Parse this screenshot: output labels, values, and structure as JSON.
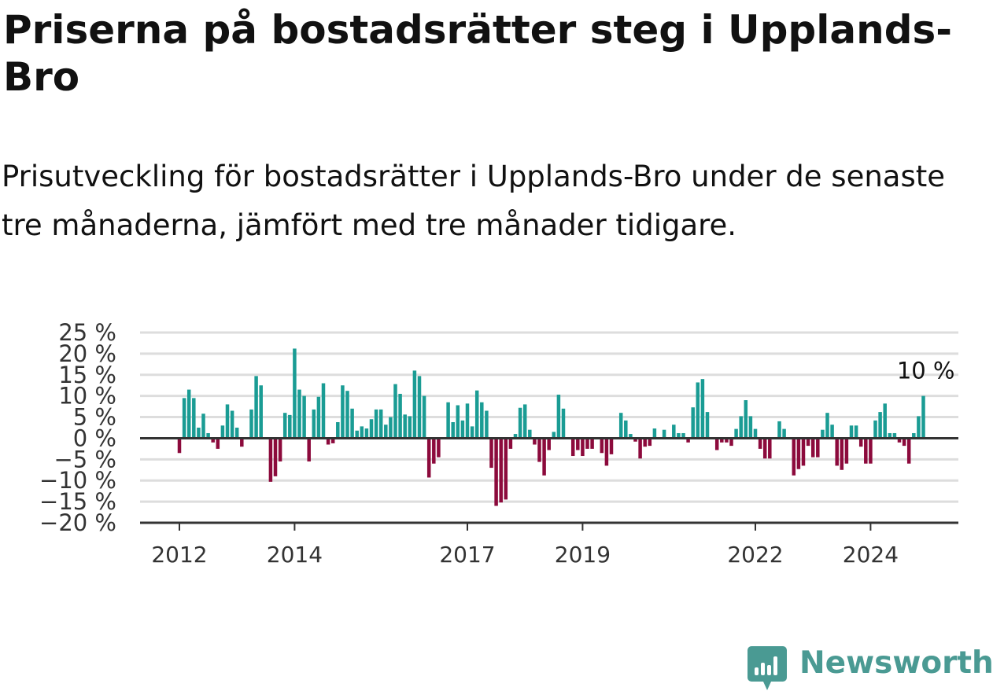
{
  "title": "Priserna på bostadsrätter steg i Upplands-Bro",
  "subtitle": "Prisutveckling för bostadsrätter i Upplands-Bro under de senaste tre månaderna, jämfört med tre månader tidigare.",
  "brand": {
    "name": "Newsworthy"
  },
  "colors": {
    "positive": "#1a9c94",
    "negative": "#8c0a3c",
    "grid": "#dddddd",
    "axis": "#333333"
  },
  "chart_data": {
    "type": "bar",
    "title": "",
    "xlabel": "",
    "ylabel": "",
    "x_start": "2012-01",
    "x_end": "2024-10",
    "ylim": [
      -20,
      25
    ],
    "yticks": [
      25,
      20,
      15,
      10,
      5,
      0,
      -5,
      -10,
      -15,
      -20
    ],
    "ytick_labels": [
      "25 %",
      "20 %",
      "15 %",
      "10 %",
      "5 %",
      "0 %",
      "−5 %",
      "−10 %",
      "−15 %",
      "−20 %"
    ],
    "xticks": [
      {
        "label": "2012",
        "date": "2012-01"
      },
      {
        "label": "2014",
        "date": "2014-01"
      },
      {
        "label": "2017",
        "date": "2017-01"
      },
      {
        "label": "2019",
        "date": "2019-01"
      },
      {
        "label": "2022",
        "date": "2022-01"
      },
      {
        "label": "2024",
        "date": "2024-01"
      }
    ],
    "grid": true,
    "last_value_label": "10 %",
    "series": [
      {
        "values": [
          -3.5,
          9.5,
          11.5,
          9.5,
          2.5,
          5.8,
          1.2,
          -1,
          -2.5,
          3,
          8,
          6.5,
          2.5,
          -2,
          0,
          6.8,
          14.7,
          12.5,
          0,
          -10.3,
          -9,
          -5.5,
          6,
          5.5,
          21.2,
          11.5,
          10,
          -5.5,
          6.8,
          9.8,
          13,
          -1.5,
          -1.2,
          3.8,
          12.5,
          11.2,
          7,
          1.8,
          2.8,
          2.3,
          4.5,
          6.8,
          6.8,
          3.2,
          5,
          12.8,
          10.5,
          5.6,
          5.2,
          16,
          14.7,
          10,
          -9.3,
          -6,
          -4.5,
          0,
          8.5,
          3.8,
          7.8,
          4.2,
          8.2,
          2.8,
          11.3,
          8.5,
          6.5,
          -7,
          -16,
          -15.2,
          -14.5,
          -2.5,
          1,
          7.2,
          8,
          2,
          -1.5,
          -5.6,
          -8.8,
          -2.8,
          1.5,
          10.3,
          7,
          0,
          -4.2,
          -2.8,
          -4.2,
          -2.5,
          -2.5,
          0,
          -3.5,
          -6.5,
          -3.8,
          0,
          6,
          4.2,
          1,
          -0.8,
          -4.8,
          -2,
          -1.8,
          2.3,
          0,
          2,
          0,
          3.2,
          1.2,
          1.2,
          -1,
          7.3,
          13.2,
          14,
          6.2,
          0,
          -2.8,
          -1,
          -1,
          -1.8,
          2.2,
          5.2,
          9,
          5.2,
          2.2,
          -2.5,
          -4.8,
          -4.8,
          0,
          4,
          2.2,
          0,
          -8.8,
          -7.3,
          -6.5,
          -1.8,
          -4.5,
          -4.5,
          2,
          6,
          3.2,
          -6.5,
          -7.5,
          -6,
          3,
          3,
          -2,
          -6,
          -6,
          4.2,
          6.2,
          8.2,
          1.2,
          1.2,
          -1,
          -1.8,
          -6,
          1.2,
          5.2,
          10
        ]
      }
    ]
  }
}
